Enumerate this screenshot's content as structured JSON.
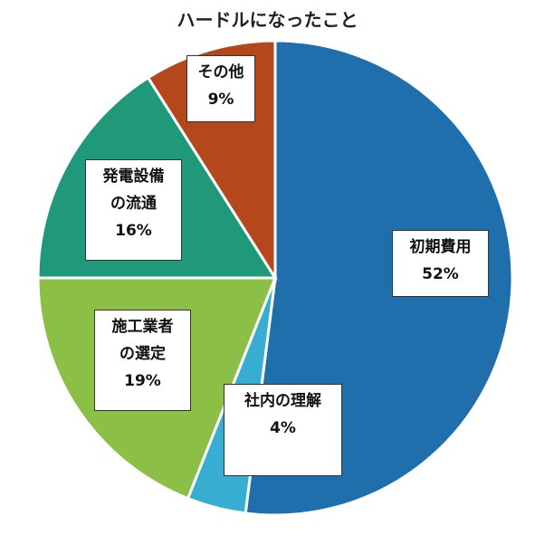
{
  "chart_data": {
    "type": "pie",
    "title": "ハードルになったこと",
    "slices": [
      {
        "label_lines": [
          "初期費用"
        ],
        "value": 52,
        "value_label": "52%",
        "color": "#1f6fad"
      },
      {
        "label_lines": [
          "社内の理解"
        ],
        "value": 4,
        "value_label": "4%",
        "color": "#37aed1"
      },
      {
        "label_lines": [
          "施工業者",
          "の選定"
        ],
        "value": 19,
        "value_label": "19%",
        "color": "#8bbf45"
      },
      {
        "label_lines": [
          "発電設備",
          "の流通"
        ],
        "value": 16,
        "value_label": "16%",
        "color": "#20997a"
      },
      {
        "label_lines": [
          "その他"
        ],
        "value": 9,
        "value_label": "9%",
        "color": "#b5471c"
      }
    ],
    "start": "12 o'clock",
    "direction": "clockwise",
    "legend": "none",
    "labels": "boxed, on slices"
  }
}
